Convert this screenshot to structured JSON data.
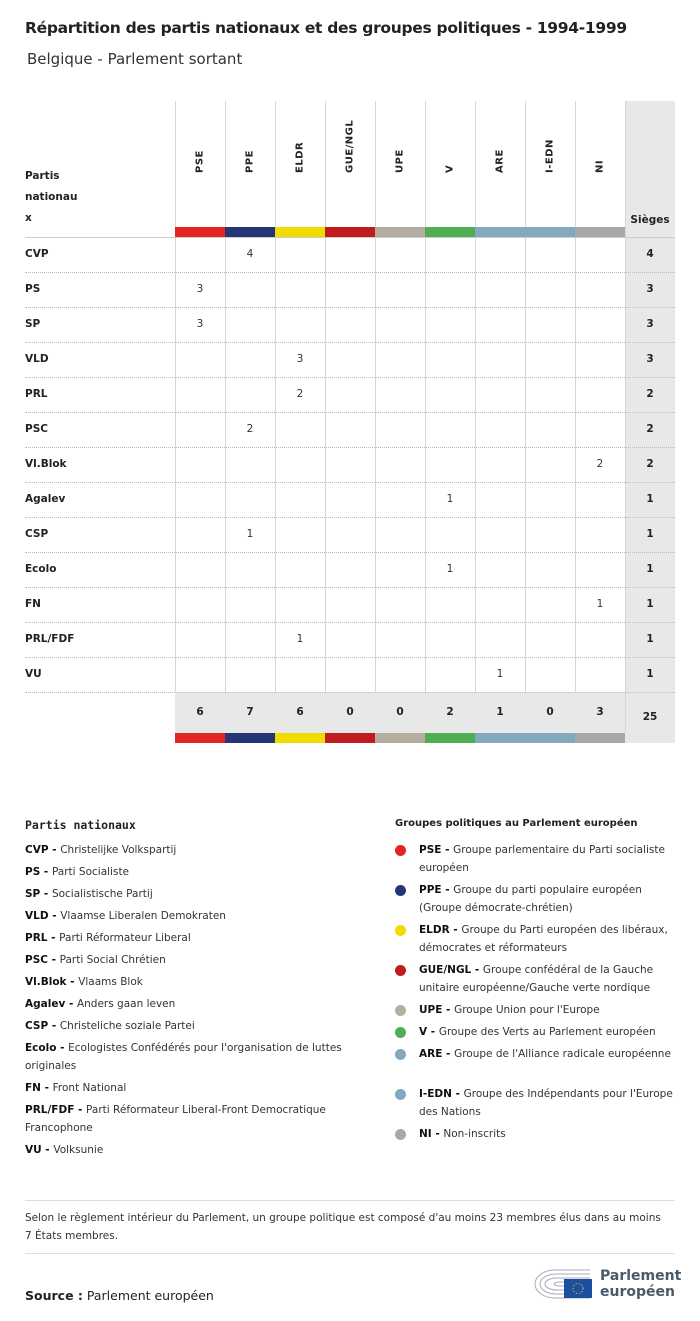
{
  "title": "Répartition des partis nationaux et des groupes politiques - 1994-1999",
  "subtitle": "Belgique - Parlement sortant",
  "table": {
    "row_header": "Partis nationau x",
    "seats_header": "Sièges",
    "groups": [
      {
        "code": "PSE",
        "color": "#e32624"
      },
      {
        "code": "PPE",
        "color": "#263576"
      },
      {
        "code": "ELDR",
        "color": "#f0dc00"
      },
      {
        "code": "GUE/NGL",
        "color": "#c01b1f"
      },
      {
        "code": "UPE",
        "color": "#b5ada0"
      },
      {
        "code": "V",
        "color": "#4fae52"
      },
      {
        "code": "ARE",
        "color": "#84a9bf"
      },
      {
        "code": "I-EDN",
        "color": "#84a9bf"
      },
      {
        "code": "NI",
        "color": "#a8a8a8"
      }
    ],
    "rows": [
      {
        "party": "CVP",
        "values": [
          "",
          "4",
          "",
          "",
          "",
          "",
          "",
          "",
          ""
        ],
        "seats": "4"
      },
      {
        "party": "PS",
        "values": [
          "3",
          "",
          "",
          "",
          "",
          "",
          "",
          "",
          ""
        ],
        "seats": "3"
      },
      {
        "party": "SP",
        "values": [
          "3",
          "",
          "",
          "",
          "",
          "",
          "",
          "",
          ""
        ],
        "seats": "3"
      },
      {
        "party": "VLD",
        "values": [
          "",
          "",
          "3",
          "",
          "",
          "",
          "",
          "",
          ""
        ],
        "seats": "3"
      },
      {
        "party": "PRL",
        "values": [
          "",
          "",
          "2",
          "",
          "",
          "",
          "",
          "",
          ""
        ],
        "seats": "2"
      },
      {
        "party": "PSC",
        "values": [
          "",
          "2",
          "",
          "",
          "",
          "",
          "",
          "",
          ""
        ],
        "seats": "2"
      },
      {
        "party": "Vl.Blok",
        "values": [
          "",
          "",
          "",
          "",
          "",
          "",
          "",
          "",
          "2"
        ],
        "seats": "2"
      },
      {
        "party": "Agalev",
        "values": [
          "",
          "",
          "",
          "",
          "",
          "1",
          "",
          "",
          ""
        ],
        "seats": "1"
      },
      {
        "party": "CSP",
        "values": [
          "",
          "1",
          "",
          "",
          "",
          "",
          "",
          "",
          ""
        ],
        "seats": "1"
      },
      {
        "party": "Ecolo",
        "values": [
          "",
          "",
          "",
          "",
          "",
          "1",
          "",
          "",
          ""
        ],
        "seats": "1"
      },
      {
        "party": "FN",
        "values": [
          "",
          "",
          "",
          "",
          "",
          "",
          "",
          "",
          "1"
        ],
        "seats": "1"
      },
      {
        "party": "PRL/FDF",
        "values": [
          "",
          "",
          "1",
          "",
          "",
          "",
          "",
          "",
          ""
        ],
        "seats": "1"
      },
      {
        "party": "VU",
        "values": [
          "",
          "",
          "",
          "",
          "",
          "",
          "1",
          "",
          ""
        ],
        "seats": "1"
      }
    ],
    "totals": [
      "6",
      "7",
      "6",
      "0",
      "0",
      "2",
      "1",
      "0",
      "3"
    ],
    "total_seats": "25"
  },
  "legend_parties": {
    "title": "Partis nationaux",
    "items": [
      {
        "code": "CVP",
        "name": "Christelijke Volkspartij"
      },
      {
        "code": "PS",
        "name": "Parti Socialiste"
      },
      {
        "code": "SP",
        "name": "Socialistische Partij"
      },
      {
        "code": "VLD",
        "name": "Vlaamse Liberalen Demokraten"
      },
      {
        "code": "PRL",
        "name": "Parti Réformateur Liberal"
      },
      {
        "code": "PSC",
        "name": "Parti Social Chrétien"
      },
      {
        "code": "Vl.Blok",
        "name": "Vlaams Blok"
      },
      {
        "code": "Agalev",
        "name": "Anders gaan leven"
      },
      {
        "code": "CSP",
        "name": "Christeliche soziale Partei"
      },
      {
        "code": "Ecolo",
        "name": "Ecologistes Confédérés pour l'organisation de luttes originales"
      },
      {
        "code": "FN",
        "name": "Front National"
      },
      {
        "code": "PRL/FDF",
        "name": "Parti Réformateur Liberal-Front Democratique Francophone"
      },
      {
        "code": "VU",
        "name": "Volksunie"
      }
    ]
  },
  "legend_groups": {
    "title": "Groupes politiques au Parlement européen",
    "items": [
      {
        "code": "PSE",
        "name": "Groupe parlementaire du Parti socialiste européen",
        "color": "#e32624"
      },
      {
        "code": "PPE",
        "name": "Groupe du parti populaire européen (Groupe démocrate-chrétien)",
        "color": "#263576"
      },
      {
        "code": "ELDR",
        "name": "Groupe du Parti européen des libéraux, démocrates et réformateurs",
        "color": "#f0dc00"
      },
      {
        "code": "GUE/NGL",
        "name": "Groupe confédéral de la Gauche unitaire européenne/Gauche verte nordique",
        "color": "#c01b1f"
      },
      {
        "code": "UPE",
        "name": "Groupe Union pour l'Europe",
        "color": "#b5ada0"
      },
      {
        "code": "V",
        "name": "Groupe des Verts au Parlement européen",
        "color": "#4fae52"
      },
      {
        "code": "ARE",
        "name": "Groupe de l'Alliance radicale européenne",
        "color": "#84a9bf"
      },
      {
        "code": "I-EDN",
        "name": "Groupe des Indépendants pour l'Europe des Nations",
        "color": "#84a9bf"
      },
      {
        "code": "NI",
        "name": "Non-inscrits",
        "color": "#a8a8a8"
      }
    ]
  },
  "note": "Selon le règlement intérieur du Parlement, un groupe politique est composé d'au moins 23 membres élus dans au moins 7 États membres.",
  "source": {
    "label": "Source :",
    "value": "Parlement européen"
  },
  "logo": {
    "text": "Parlement européen"
  }
}
